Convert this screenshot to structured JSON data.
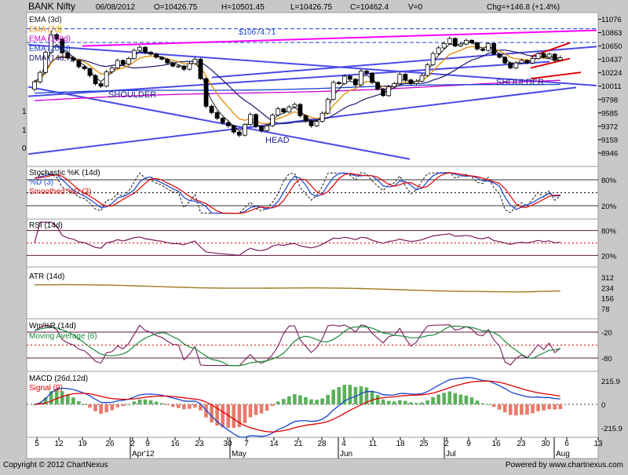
{
  "header": {
    "symbol": "BANK Nifty",
    "date": "06/08/2012",
    "open": "O=10426.75",
    "high": "H=10501.45",
    "low": "L=10426.75",
    "close": "C=10462.4",
    "volume": "V=0",
    "change": "Chg=+146.8 (+1.4%)"
  },
  "footer": {
    "copyright": "Copyright © 2012 ChartNexus",
    "powered": "Powered by www.chartnexus.com"
  },
  "colors": {
    "background": "#ffffff",
    "frame": "#c8c8c8",
    "ema3": "#1a1a1a",
    "ema7": "#e08a00",
    "ema100": "#cc00cc",
    "ema200": "#1a44cc",
    "dma": "#1a1a6e",
    "trendline": "#4a4ae8",
    "red_trendline": "#e00000",
    "magenta_trendline": "#ff00ff",
    "candle": "#000000",
    "stoch_k": "#1a44cc",
    "stoch_d": "#1a1a1a",
    "stoch_smooth": "#e00000",
    "rsi": "#7a1a5a",
    "atr": "#a07820",
    "willr": "#7a1a5a",
    "willr_ma": "#1a8a3a",
    "macd": "#1a44cc",
    "signal": "#e00000",
    "hist_pos": "#5ab05a",
    "hist_neg": "#e87a6a"
  },
  "chart_data": [
    {
      "type": "candlestick",
      "panel": "price",
      "legend": [
        "EMA (3d)",
        "EMA (7d)",
        "EMA (100d)",
        "EMA (200d)",
        "DMA (14d,7)"
      ],
      "y_ticks": [
        11076,
        10863,
        10650,
        10437,
        10224,
        10011,
        9798,
        9585,
        9372,
        9159,
        8946
      ],
      "ylim": [
        8733,
        11182
      ],
      "annotations": [
        {
          "text": "$10674.71",
          "x": 36,
          "y": 10650
        },
        {
          "text": "SHOULDER",
          "x": 15,
          "y": 9650
        },
        {
          "text": "HEAD",
          "x": 44,
          "y": 8850
        },
        {
          "text": "SHOULDER",
          "x": 89,
          "y": 9850
        }
      ],
      "left_labels": [
        "1",
        "1",
        "0"
      ],
      "close": [
        10080,
        10230,
        10550,
        10830,
        10760,
        10540,
        10460,
        10420,
        10320,
        10290,
        10180,
        10050,
        10010,
        10240,
        10300,
        10420,
        10360,
        10450,
        10580,
        10630,
        10550,
        10520,
        10470,
        10440,
        10380,
        10330,
        10330,
        10280,
        10370,
        10440,
        10130,
        9690,
        9590,
        9500,
        9430,
        9380,
        9280,
        9230,
        9400,
        9560,
        9370,
        9300,
        9380,
        9550,
        9650,
        9600,
        9680,
        9720,
        9540,
        9460,
        9380,
        9450,
        9580,
        9800,
        10070,
        10050,
        10170,
        10120,
        10030,
        10250,
        10220,
        10070,
        9960,
        9860,
        10000,
        10050,
        10200,
        10110,
        10050,
        10090,
        10180,
        10350,
        10530,
        10620,
        10690,
        10770,
        10650,
        10680,
        10740,
        10700,
        10600,
        10580,
        10690,
        10520,
        10470,
        10380,
        10300,
        10380,
        10420,
        10380,
        10450,
        10530,
        10470,
        10520,
        10420,
        10462
      ],
      "open": [
        9960,
        10080,
        10230,
        10550,
        10830,
        10760,
        10540,
        10460,
        10420,
        10320,
        10290,
        10180,
        10050,
        10010,
        10240,
        10300,
        10420,
        10360,
        10450,
        10580,
        10630,
        10550,
        10520,
        10470,
        10440,
        10380,
        10330,
        10330,
        10280,
        10370,
        10440,
        10130,
        9690,
        9590,
        9500,
        9430,
        9380,
        9280,
        9230,
        9400,
        9560,
        9370,
        9300,
        9380,
        9550,
        9650,
        9600,
        9680,
        9720,
        9540,
        9460,
        9380,
        9450,
        9580,
        9800,
        10070,
        10050,
        10170,
        10120,
        10030,
        10250,
        10220,
        10070,
        9960,
        9860,
        10000,
        10050,
        10200,
        10110,
        10050,
        10090,
        10180,
        10350,
        10530,
        10620,
        10690,
        10770,
        10650,
        10680,
        10740,
        10700,
        10600,
        10580,
        10690,
        10520,
        10470,
        10380,
        10300,
        10380,
        10420,
        10380,
        10450,
        10530,
        10470,
        10520,
        10427
      ],
      "high": [
        10110,
        10260,
        10580,
        10900,
        10860,
        10780,
        10570,
        10490,
        10440,
        10350,
        10310,
        10200,
        10080,
        10270,
        10330,
        10450,
        10440,
        10480,
        10610,
        10660,
        10650,
        10570,
        10540,
        10490,
        10460,
        10400,
        10360,
        10350,
        10400,
        10470,
        10460,
        10150,
        9720,
        9620,
        9520,
        9460,
        9400,
        9300,
        9420,
        9590,
        9580,
        9390,
        9410,
        9580,
        9680,
        9670,
        9710,
        9750,
        9740,
        9560,
        9480,
        9480,
        9610,
        9830,
        10100,
        10090,
        10200,
        10190,
        10140,
        10280,
        10270,
        10230,
        10090,
        9980,
        10030,
        10080,
        10230,
        10220,
        10130,
        10120,
        10210,
        10380,
        10560,
        10650,
        10720,
        10800,
        10790,
        10710,
        10770,
        10760,
        10720,
        10620,
        10710,
        10700,
        10540,
        10490,
        10400,
        10410,
        10450,
        10440,
        10480,
        10560,
        10550,
        10550,
        10540,
        10501
      ],
      "low": [
        9930,
        10050,
        10200,
        10520,
        10730,
        10510,
        10430,
        10390,
        10290,
        10260,
        10150,
        10020,
        9980,
        9990,
        10210,
        10280,
        10330,
        10340,
        10430,
        10550,
        10520,
        10500,
        10450,
        10420,
        10360,
        10310,
        10300,
        10250,
        10260,
        10350,
        10110,
        9660,
        9560,
        9470,
        9400,
        9350,
        9250,
        9200,
        9210,
        9380,
        9340,
        9270,
        9280,
        9360,
        9530,
        9580,
        9580,
        9660,
        9510,
        9430,
        9350,
        9360,
        9430,
        9560,
        9780,
        10030,
        10030,
        10090,
        10000,
        10010,
        10190,
        10040,
        9940,
        9840,
        9840,
        9980,
        10030,
        10080,
        10030,
        10030,
        10070,
        10160,
        10330,
        10510,
        10600,
        10670,
        10630,
        10630,
        10660,
        10680,
        10580,
        10560,
        10560,
        10500,
        10450,
        10360,
        10280,
        10280,
        10360,
        10360,
        10360,
        10430,
        10450,
        10450,
        10400,
        10427
      ]
    },
    {
      "type": "line",
      "panel": "stochastic",
      "legend": [
        "Stochastic %K (14d)",
        "%D (3)",
        "Smoothed %D (3)"
      ],
      "y_ticks": [
        "80%",
        "20%"
      ],
      "ylim": [
        0,
        100
      ]
    },
    {
      "type": "line",
      "panel": "rsi",
      "legend": [
        "RSI (14d)"
      ],
      "y_ticks": [
        "80%",
        "20%"
      ],
      "ylim": [
        0,
        100
      ]
    },
    {
      "type": "line",
      "panel": "atr",
      "legend": [
        "ATR (14d)"
      ],
      "y_ticks": [
        "312",
        "234",
        "156",
        "78"
      ],
      "ylim": [
        0,
        390
      ]
    },
    {
      "type": "line",
      "panel": "williams_r",
      "legend": [
        "Wm%R (14d)",
        "Moving Average (6)"
      ],
      "y_ticks": [
        "-20",
        "-80"
      ],
      "ylim": [
        -100,
        0
      ]
    },
    {
      "type": "bar",
      "panel": "macd",
      "legend": [
        "MACD (26d,12d)",
        "Signal (9)"
      ],
      "y_ticks": [
        "215.9",
        "0",
        "-215.9"
      ],
      "ylim": [
        -300,
        300
      ]
    }
  ],
  "x_axis": {
    "days": [
      "5",
      "12",
      "19",
      "26",
      "2",
      "9",
      "16",
      "23",
      "30",
      "7",
      "14",
      "21",
      "28",
      "4",
      "11",
      "18",
      "25",
      "2",
      "9",
      "16",
      "23",
      "30",
      "6",
      "13"
    ],
    "months": [
      "Apr'12",
      "May",
      "Jun",
      "Jul",
      "Aug"
    ]
  }
}
